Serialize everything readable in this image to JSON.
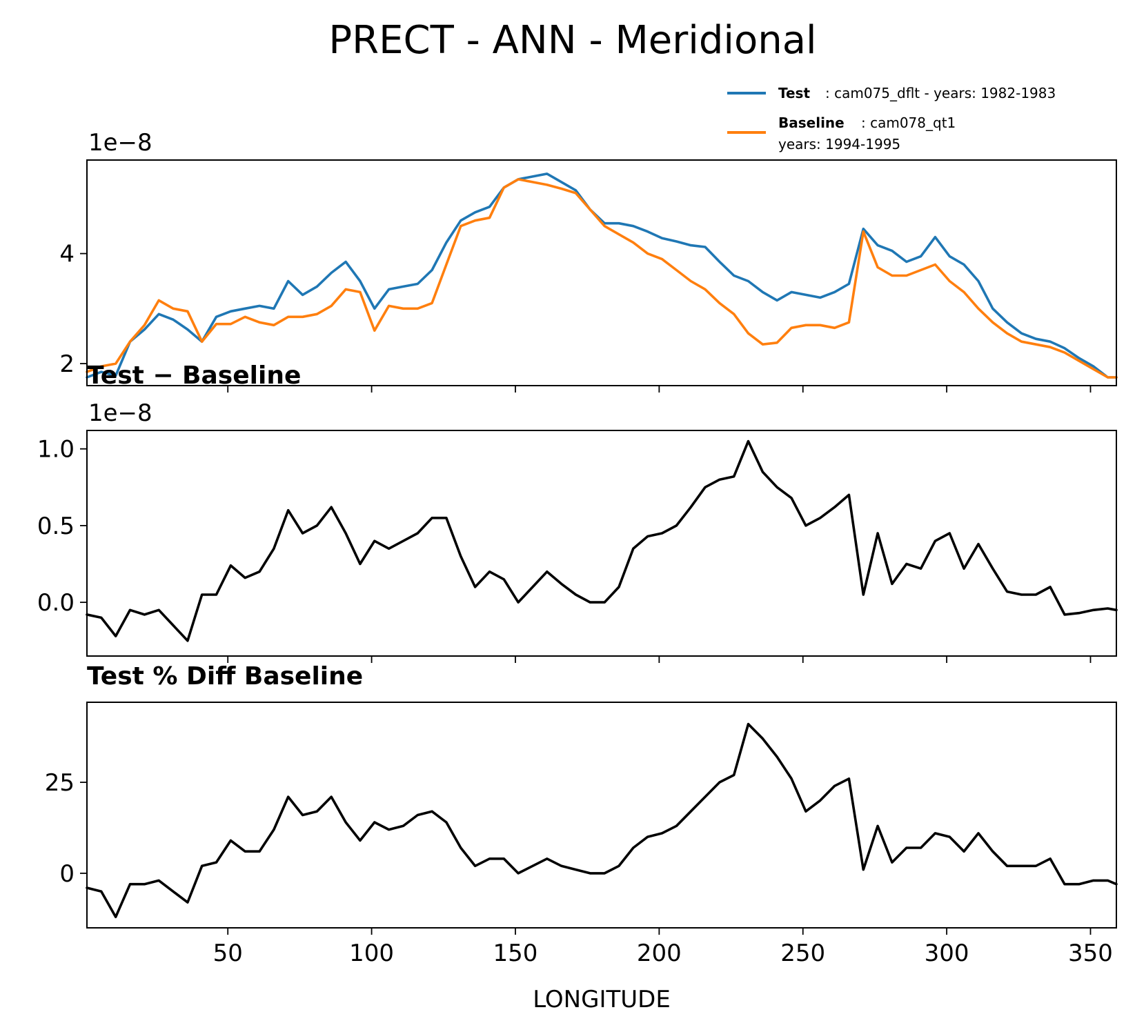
{
  "figure_title": "PRECT - ANN - Meridional",
  "x_axis_label": "LONGITUDE",
  "legend": {
    "test_label": "Test",
    "test_text": ": cam075_dflt - years: 1982-1983",
    "baseline_label": "Baseline",
    "baseline_text": ": cam078_qt1",
    "baseline_text2": "years: 1994-1995"
  },
  "colors": {
    "test": "#1f77b4",
    "baseline": "#ff7f0e",
    "diff": "#000000"
  },
  "chart_data": [
    {
      "type": "line",
      "title": "",
      "offset_label": "1e−8",
      "xlabel": "",
      "ylabel": "",
      "xlim": [
        1,
        359
      ],
      "ylim": [
        1.6,
        5.7
      ],
      "yticks": [
        2,
        4
      ],
      "ytick_labels": [
        "2",
        "4"
      ],
      "x": [
        1,
        6,
        11,
        16,
        21,
        26,
        31,
        36,
        41,
        46,
        51,
        56,
        61,
        66,
        71,
        76,
        81,
        86,
        91,
        96,
        101,
        106,
        111,
        116,
        121,
        126,
        131,
        136,
        141,
        146,
        151,
        156,
        161,
        166,
        171,
        176,
        181,
        186,
        191,
        196,
        201,
        206,
        211,
        216,
        221,
        226,
        231,
        236,
        241,
        246,
        251,
        256,
        261,
        266,
        271,
        276,
        281,
        286,
        291,
        296,
        301,
        306,
        311,
        316,
        321,
        326,
        331,
        336,
        341,
        346,
        351,
        356,
        359
      ],
      "series": [
        {
          "name": "Test",
          "color": "#1f77b4",
          "values": [
            1.75,
            1.85,
            1.78,
            2.4,
            2.62,
            2.9,
            2.8,
            2.62,
            2.4,
            2.85,
            2.95,
            3.0,
            3.05,
            3.0,
            3.5,
            3.25,
            3.4,
            3.65,
            3.85,
            3.5,
            3.0,
            3.35,
            3.4,
            3.45,
            3.7,
            4.2,
            4.6,
            4.75,
            4.85,
            5.2,
            5.35,
            5.4,
            5.45,
            5.3,
            5.15,
            4.8,
            4.55,
            4.55,
            4.5,
            4.4,
            4.28,
            4.22,
            4.15,
            4.12,
            3.85,
            3.6,
            3.5,
            3.3,
            3.15,
            3.3,
            3.25,
            3.2,
            3.3,
            3.45,
            4.45,
            4.15,
            4.05,
            3.85,
            3.95,
            4.3,
            3.95,
            3.8,
            3.5,
            3.0,
            2.75,
            2.55,
            2.45,
            2.4,
            2.28,
            2.1,
            1.95,
            1.75,
            1.75
          ]
        },
        {
          "name": "Baseline",
          "color": "#ff7f0e",
          "values": [
            1.85,
            1.95,
            2.0,
            2.4,
            2.7,
            3.15,
            3.0,
            2.95,
            2.4,
            2.72,
            2.72,
            2.85,
            2.75,
            2.7,
            2.85,
            2.85,
            2.9,
            3.05,
            3.35,
            3.3,
            2.6,
            3.05,
            3.0,
            3.0,
            3.1,
            3.8,
            4.5,
            4.6,
            4.65,
            5.2,
            5.35,
            5.3,
            5.25,
            5.18,
            5.1,
            4.8,
            4.5,
            4.35,
            4.2,
            4.0,
            3.9,
            3.7,
            3.5,
            3.35,
            3.1,
            2.9,
            2.55,
            2.35,
            2.38,
            2.65,
            2.7,
            2.7,
            2.65,
            2.75,
            4.4,
            3.75,
            3.6,
            3.6,
            3.7,
            3.8,
            3.5,
            3.3,
            3.0,
            2.75,
            2.55,
            2.4,
            2.35,
            2.3,
            2.2,
            2.05,
            1.9,
            1.75,
            1.75
          ]
        }
      ]
    },
    {
      "type": "line",
      "title": "Test − Baseline",
      "offset_label": "1e−8",
      "xlabel": "",
      "ylabel": "",
      "xlim": [
        1,
        359
      ],
      "ylim": [
        -0.35,
        1.12
      ],
      "yticks": [
        0.0,
        0.5,
        1.0
      ],
      "ytick_labels": [
        "0.0",
        "0.5",
        "1.0"
      ],
      "x": [
        1,
        6,
        11,
        16,
        21,
        26,
        31,
        36,
        41,
        46,
        51,
        56,
        61,
        66,
        71,
        76,
        81,
        86,
        91,
        96,
        101,
        106,
        111,
        116,
        121,
        126,
        131,
        136,
        141,
        146,
        151,
        156,
        161,
        166,
        171,
        176,
        181,
        186,
        191,
        196,
        201,
        206,
        211,
        216,
        221,
        226,
        231,
        236,
        241,
        246,
        251,
        256,
        261,
        266,
        271,
        276,
        281,
        286,
        291,
        296,
        301,
        306,
        311,
        316,
        321,
        326,
        331,
        336,
        341,
        346,
        351,
        356,
        359
      ],
      "series": [
        {
          "name": "Test − Baseline",
          "color": "#000000",
          "values": [
            -0.08,
            -0.1,
            -0.22,
            -0.05,
            -0.08,
            -0.05,
            -0.15,
            -0.25,
            0.05,
            0.05,
            0.24,
            0.16,
            0.2,
            0.35,
            0.6,
            0.45,
            0.5,
            0.62,
            0.45,
            0.25,
            0.4,
            0.35,
            0.4,
            0.45,
            0.55,
            0.55,
            0.3,
            0.1,
            0.2,
            0.15,
            0.0,
            0.1,
            0.2,
            0.12,
            0.05,
            0.0,
            0.0,
            0.1,
            0.35,
            0.43,
            0.45,
            0.5,
            0.62,
            0.75,
            0.8,
            0.82,
            1.05,
            0.85,
            0.75,
            0.68,
            0.5,
            0.55,
            0.62,
            0.7,
            0.05,
            0.45,
            0.12,
            0.25,
            0.22,
            0.4,
            0.45,
            0.22,
            0.38,
            0.22,
            0.07,
            0.05,
            0.05,
            0.1,
            -0.08,
            -0.07,
            -0.05,
            -0.04,
            -0.05
          ]
        }
      ]
    },
    {
      "type": "line",
      "title": "Test % Diff Baseline",
      "offset_label": "",
      "xlabel": "LONGITUDE",
      "ylabel": "",
      "xlim": [
        1,
        359
      ],
      "ylim": [
        -15,
        47
      ],
      "yticks": [
        0,
        25
      ],
      "ytick_labels": [
        "0",
        "25"
      ],
      "xticks": [
        50,
        100,
        150,
        200,
        250,
        300,
        350
      ],
      "xtick_labels": [
        "50",
        "100",
        "150",
        "200",
        "250",
        "300",
        "350"
      ],
      "x": [
        1,
        6,
        11,
        16,
        21,
        26,
        31,
        36,
        41,
        46,
        51,
        56,
        61,
        66,
        71,
        76,
        81,
        86,
        91,
        96,
        101,
        106,
        111,
        116,
        121,
        126,
        131,
        136,
        141,
        146,
        151,
        156,
        161,
        166,
        171,
        176,
        181,
        186,
        191,
        196,
        201,
        206,
        211,
        216,
        221,
        226,
        231,
        236,
        241,
        246,
        251,
        256,
        261,
        266,
        271,
        276,
        281,
        286,
        291,
        296,
        301,
        306,
        311,
        316,
        321,
        326,
        331,
        336,
        341,
        346,
        351,
        356,
        359
      ],
      "series": [
        {
          "name": "Test % Diff Baseline",
          "color": "#000000",
          "values": [
            -4,
            -5,
            -12,
            -3,
            -3,
            -2,
            -5,
            -8,
            2,
            3,
            9,
            6,
            6,
            12,
            21,
            16,
            17,
            21,
            14,
            9,
            14,
            12,
            13,
            16,
            17,
            14,
            7,
            2,
            4,
            4,
            0,
            2,
            4,
            2,
            1,
            0,
            0,
            2,
            7,
            10,
            11,
            13,
            17,
            21,
            25,
            27,
            41,
            37,
            32,
            26,
            17,
            20,
            24,
            26,
            1,
            13,
            3,
            7,
            7,
            11,
            10,
            6,
            11,
            6,
            2,
            2,
            2,
            4,
            -3,
            -3,
            -2,
            -2,
            -3
          ]
        }
      ]
    }
  ]
}
